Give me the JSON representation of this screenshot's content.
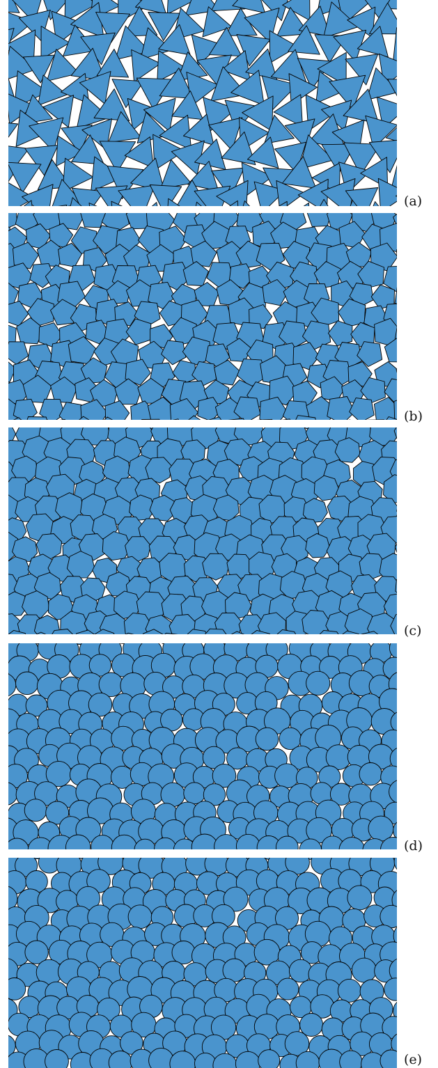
{
  "figure": {
    "fill_color": "#4a94cd",
    "stroke_color": "#000000",
    "background_color": "#ffffff",
    "panels": [
      {
        "label": "(a)",
        "shape": "triangle",
        "sides": 3
      },
      {
        "label": "(b)",
        "shape": "pentagon",
        "sides": 5
      },
      {
        "label": "(c)",
        "shape": "heptagon",
        "sides": 7
      },
      {
        "label": "(d)",
        "shape": "circle",
        "sides": 0
      },
      {
        "label": "(e)",
        "shape": "circle",
        "sides": 0
      }
    ]
  }
}
